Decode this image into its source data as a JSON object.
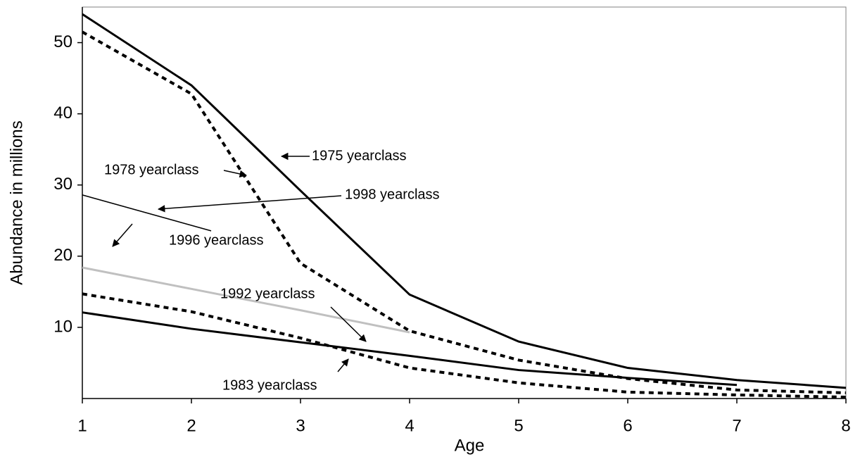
{
  "chart_data": {
    "type": "line",
    "x_label": "Age",
    "y_label": "Abundance in millions",
    "x": [
      1,
      2,
      3,
      4,
      5,
      6,
      7,
      8
    ],
    "xlim": [
      1,
      8
    ],
    "xticks": [
      1,
      2,
      3,
      4,
      5,
      6,
      7,
      8
    ],
    "ylim": [
      0,
      55
    ],
    "yticks": [
      10,
      20,
      30,
      40,
      50
    ],
    "series": [
      {
        "name": "1975 yearclass",
        "color": "#000000",
        "style": "solid",
        "values": [
          54,
          44,
          29.2,
          14.6,
          8,
          4.3,
          2.6,
          1.5
        ]
      },
      {
        "name": "1978 yearclass",
        "color": "#000000",
        "style": "dotted",
        "values": [
          51.5,
          42.8,
          19,
          9.5,
          5.4,
          2.8,
          1.2,
          0.8
        ]
      },
      {
        "name": "1998 yearclass",
        "color": "#000000",
        "style": "thin",
        "values": [
          28.6,
          null,
          null,
          null,
          null,
          null,
          null,
          null
        ]
      },
      {
        "name": "1996 yearclass",
        "color": "#c0c0c0",
        "style": "solid",
        "values": [
          18.4,
          15.4,
          12.4,
          9.3,
          null,
          null,
          null,
          null
        ]
      },
      {
        "name": "1992 yearclass",
        "color": "#000000",
        "style": "solid",
        "values": [
          12.1,
          9.8,
          7.9,
          6,
          4,
          2.9,
          1.9,
          null
        ]
      },
      {
        "name": "1983 yearclass",
        "color": "#000000",
        "style": "dotted",
        "values": [
          14.7,
          12.2,
          8.5,
          4.3,
          2.2,
          0.9,
          0.5,
          0.2
        ]
      }
    ]
  }
}
